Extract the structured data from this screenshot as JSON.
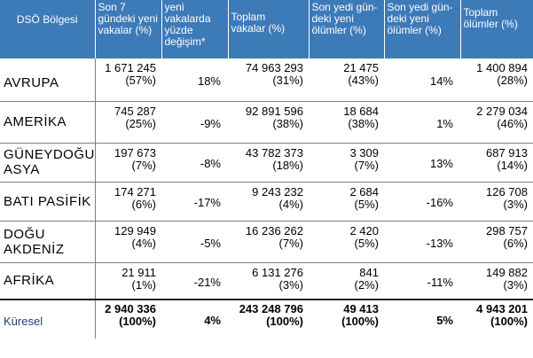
{
  "headers": {
    "region": "DSÖ Bölgesi",
    "new_cases_7d": [
      "Son 7",
      "gündeki yeni",
      "vakalar (%)"
    ],
    "change_pct": [
      "yeni vakalarda",
      "yüzde",
      "değişim*"
    ],
    "total_cases": [
      "Toplam",
      "vakalar (%)"
    ],
    "new_deaths_7d": [
      "Son yedi gün-",
      "deki yeni",
      "ölümler (%)"
    ],
    "death_change_pct": [
      "Son yedi gün-",
      "deki yeni",
      "ölümler (%)"
    ],
    "total_deaths": [
      "Toplam",
      "ölümler (%)"
    ]
  },
  "rows": [
    {
      "region": [
        "AVRUPA"
      ],
      "new_cases": "1 671 245",
      "new_cases_pct": "(57%)",
      "change": "18%",
      "total_cases": "74 963 293",
      "total_cases_pct": "(31%)",
      "new_deaths": "21 475",
      "new_deaths_pct": "(43%)",
      "death_change": "14%",
      "total_deaths": "1 400 894",
      "total_deaths_pct": "(28%)"
    },
    {
      "region": [
        "AMERİKA"
      ],
      "new_cases": "745 287",
      "new_cases_pct": "(25%)",
      "change": "-9%",
      "total_cases": "92 891 596",
      "total_cases_pct": "(38%)",
      "new_deaths": "18 684",
      "new_deaths_pct": "(38%)",
      "death_change": "1%",
      "total_deaths": "2 279 034",
      "total_deaths_pct": "(46%)"
    },
    {
      "region": [
        "GÜNEYDOĞU",
        "ASYA"
      ],
      "new_cases": "197 673",
      "new_cases_pct": "(7%)",
      "change": "-8%",
      "total_cases": "43 782 373",
      "total_cases_pct": "(18%)",
      "new_deaths": "3 309",
      "new_deaths_pct": "(7%)",
      "death_change": "13%",
      "total_deaths": "687 913",
      "total_deaths_pct": "(14%)"
    },
    {
      "region": [
        "BATI PASİFİK"
      ],
      "new_cases": "174 271",
      "new_cases_pct": "(6%)",
      "change": "-17%",
      "total_cases": "9 243 232",
      "total_cases_pct": "(4%)",
      "new_deaths": "2 684",
      "new_deaths_pct": "(5%)",
      "death_change": "-16%",
      "total_deaths": "126 708",
      "total_deaths_pct": "(3%)"
    },
    {
      "region": [
        "DOĞU",
        "AKDENİZ"
      ],
      "new_cases": "129 949",
      "new_cases_pct": "(4%)",
      "change": "-5%",
      "total_cases": "16 236 262",
      "total_cases_pct": "(7%)",
      "new_deaths": "2 420",
      "new_deaths_pct": "(5%)",
      "death_change": "-13%",
      "total_deaths": "298 757",
      "total_deaths_pct": "(6%)"
    },
    {
      "region": [
        "AFRİKA"
      ],
      "new_cases": "21 911",
      "new_cases_pct": "(1%)",
      "change": "-21%",
      "total_cases": "6 131 276",
      "total_cases_pct": "(3%)",
      "new_deaths": "841",
      "new_deaths_pct": "(2%)",
      "death_change": "-11%",
      "total_deaths": "149 882",
      "total_deaths_pct": "(3%)"
    }
  ],
  "total": {
    "region": "Küresel",
    "new_cases": "2 940 336",
    "new_cases_pct": "(100%)",
    "change": "4%",
    "total_cases": "243 248 796",
    "total_cases_pct": "(100%)",
    "new_deaths": "49 413",
    "new_deaths_pct": "(100%)",
    "death_change": "5%",
    "total_deaths": "4 943 201",
    "total_deaths_pct": "(100%)"
  }
}
